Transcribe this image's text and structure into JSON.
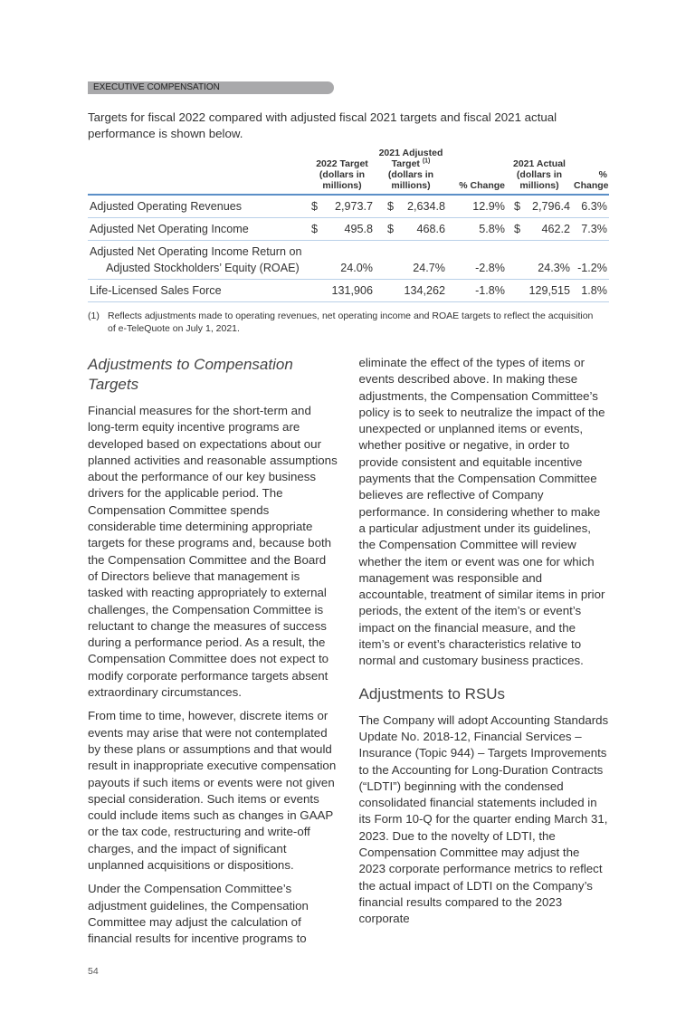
{
  "section_tab": "EXECUTIVE COMPENSATION",
  "intro": "Targets for fiscal 2022 compared with adjusted fiscal 2021 targets and fiscal 2021 actual performance is shown below.",
  "table": {
    "headers": {
      "target_2022": [
        "2022 Target",
        "(dollars in",
        "millions)"
      ],
      "adjusted_2021": [
        "2021 Adjusted",
        "Target",
        "(1)",
        "(dollars in",
        "millions)"
      ],
      "pct_change_1": "% Change",
      "actual_2021": [
        "2021 Actual",
        "(dollars in",
        "millions)"
      ],
      "pct_change_2": [
        "%",
        "Change"
      ]
    },
    "rows": [
      {
        "label": "Adjusted Operating Revenues",
        "label2": "",
        "t2022_sym": "$",
        "t2022": "2,973.7",
        "a2021_sym": "$",
        "a2021": "2,634.8",
        "chg1": "12.9%",
        "act_sym": "$",
        "act2021": "2,796.4",
        "chg2": "6.3%"
      },
      {
        "label": "Adjusted Net Operating Income",
        "label2": "",
        "t2022_sym": "$",
        "t2022": "495.8",
        "a2021_sym": "$",
        "a2021": "468.6",
        "chg1": "5.8%",
        "act_sym": "$",
        "act2021": "462.2",
        "chg2": "7.3%"
      },
      {
        "label": "Adjusted Net Operating Income Return on",
        "label2": "Adjusted Stockholders’ Equity (ROAE)",
        "t2022_sym": "",
        "t2022": "24.0%",
        "a2021_sym": "",
        "a2021": "24.7%",
        "chg1": "-2.8%",
        "act_sym": "",
        "act2021": "24.3%",
        "chg2": "-1.2%"
      },
      {
        "label": "Life-Licensed Sales Force",
        "label2": "",
        "t2022_sym": "",
        "t2022": "131,906",
        "a2021_sym": "",
        "a2021": "134,262",
        "chg1": "-1.8%",
        "act_sym": "",
        "act2021": "129,515",
        "chg2": "1.8%"
      }
    ]
  },
  "footnote": {
    "num": "(1)",
    "text": "Reflects adjustments made to operating revenues, net operating income and ROAE targets to reflect the acquisition of e-TeleQuote on July 1, 2021."
  },
  "left_column": {
    "heading": "Adjustments to Compensation Targets",
    "paragraphs": [
      "Financial measures for the short-term and long-term equity incentive programs are developed based on expectations about our planned activities and reasonable assumptions about the performance of our key business drivers for the applicable period. The Compensation Committee spends considerable time determining appropriate targets for these programs and, because both the Compensation Committee and the Board of Directors believe that management is tasked with reacting appropriately to external challenges, the Compensation Committee is reluctant to change the measures of success during a performance period. As a result, the Compensation Committee does not expect to modify corporate performance targets absent extraordinary circumstances.",
      "From time to time, however, discrete items or events may arise that were not contemplated by these plans or assumptions and that would result in inappropriate executive compensation payouts if such items or events were not given special consideration. Such items or events could include items such as changes in GAAP or the tax code, restructuring and write-off charges, and the impact of significant unplanned acquisitions or dispositions.",
      "Under the Compensation Committee’s adjustment guidelines, the Compensation Committee may adjust the calculation of financial results for incentive programs to"
    ]
  },
  "right_column": {
    "paragraph1": "eliminate the effect of the types of items or events described above. In making these adjustments, the Compensation Committee’s policy is to seek to neutralize the impact of the unexpected or unplanned items or events, whether positive or negative, in order to provide consistent and equitable incentive payments that the Compensation Committee believes are reflective of Company performance. In considering whether to make a particular adjustment under its guidelines, the Compensation Committee will review whether the item or event was one for which management was responsible and accountable, treatment of similar items in prior periods, the extent of the item’s or event’s impact on the financial measure, and the item’s or event’s characteristics relative to normal and customary business practices.",
    "heading": "Adjustments to RSUs",
    "paragraph2": "The Company will adopt Accounting Standards Update No. 2018-12, Financial Services – Insurance (Topic 944) – Targets Improvements to the Accounting for Long-Duration Contracts (“LDTI”) beginning with the condensed consolidated financial statements included in its Form 10-Q for the quarter ending March 31, 2023. Due to the novelty of LDTI, the Compensation Committee may adjust the 2023 corporate performance metrics to reflect the actual impact of LDTI on the Company’s financial results compared to the 2023 corporate"
  },
  "page_number": "54",
  "colors": {
    "rule_blue": "#5b8fc7",
    "row_line": "#b9d0e8",
    "tab_gray": "#a9a9ab"
  }
}
